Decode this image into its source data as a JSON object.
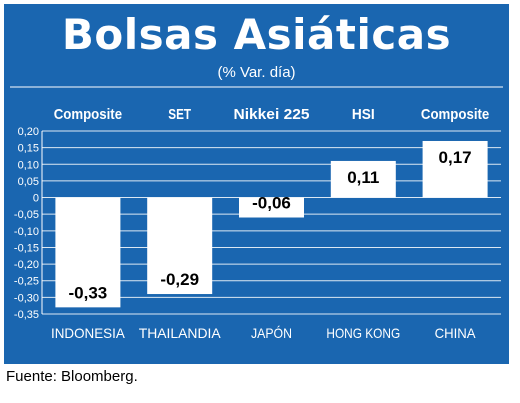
{
  "colors": {
    "panel": "#1a66b0",
    "bar": "#ffffff",
    "grid": "#ffffff",
    "text_on_panel": "#ffffff",
    "value_text": "#000000"
  },
  "chart_data": {
    "type": "bar",
    "title": "Bolsas Asiáticas",
    "subtitle": "(% Var. día)",
    "source": "Fuente: Bloomberg.",
    "indices": [
      "Composite",
      "SET",
      "Nikkei 225",
      "HSI",
      "Composite"
    ],
    "categories": [
      "INDONESIA",
      "THAILANDIA",
      "JAPÓN",
      "HONG KONG",
      "CHINA"
    ],
    "values": [
      -0.33,
      -0.29,
      -0.06,
      0.11,
      0.17
    ],
    "value_labels": [
      "-0,33",
      "-0,29",
      "-0,06",
      "0,11",
      "0,17"
    ],
    "ylim": [
      -0.35,
      0.2
    ],
    "yticks": [
      0.2,
      0.15,
      0.1,
      0.05,
      0,
      -0.05,
      -0.1,
      -0.15,
      -0.2,
      -0.25,
      -0.3,
      -0.35
    ],
    "ytick_labels": [
      "0,20",
      "0,15",
      "0,10",
      "0,05",
      "0",
      "-0,05",
      "-0,10",
      "-0,15",
      "-0,20",
      "-0,25",
      "-0,30",
      "-0,35"
    ],
    "grid": true,
    "xlabel": "",
    "ylabel": ""
  }
}
